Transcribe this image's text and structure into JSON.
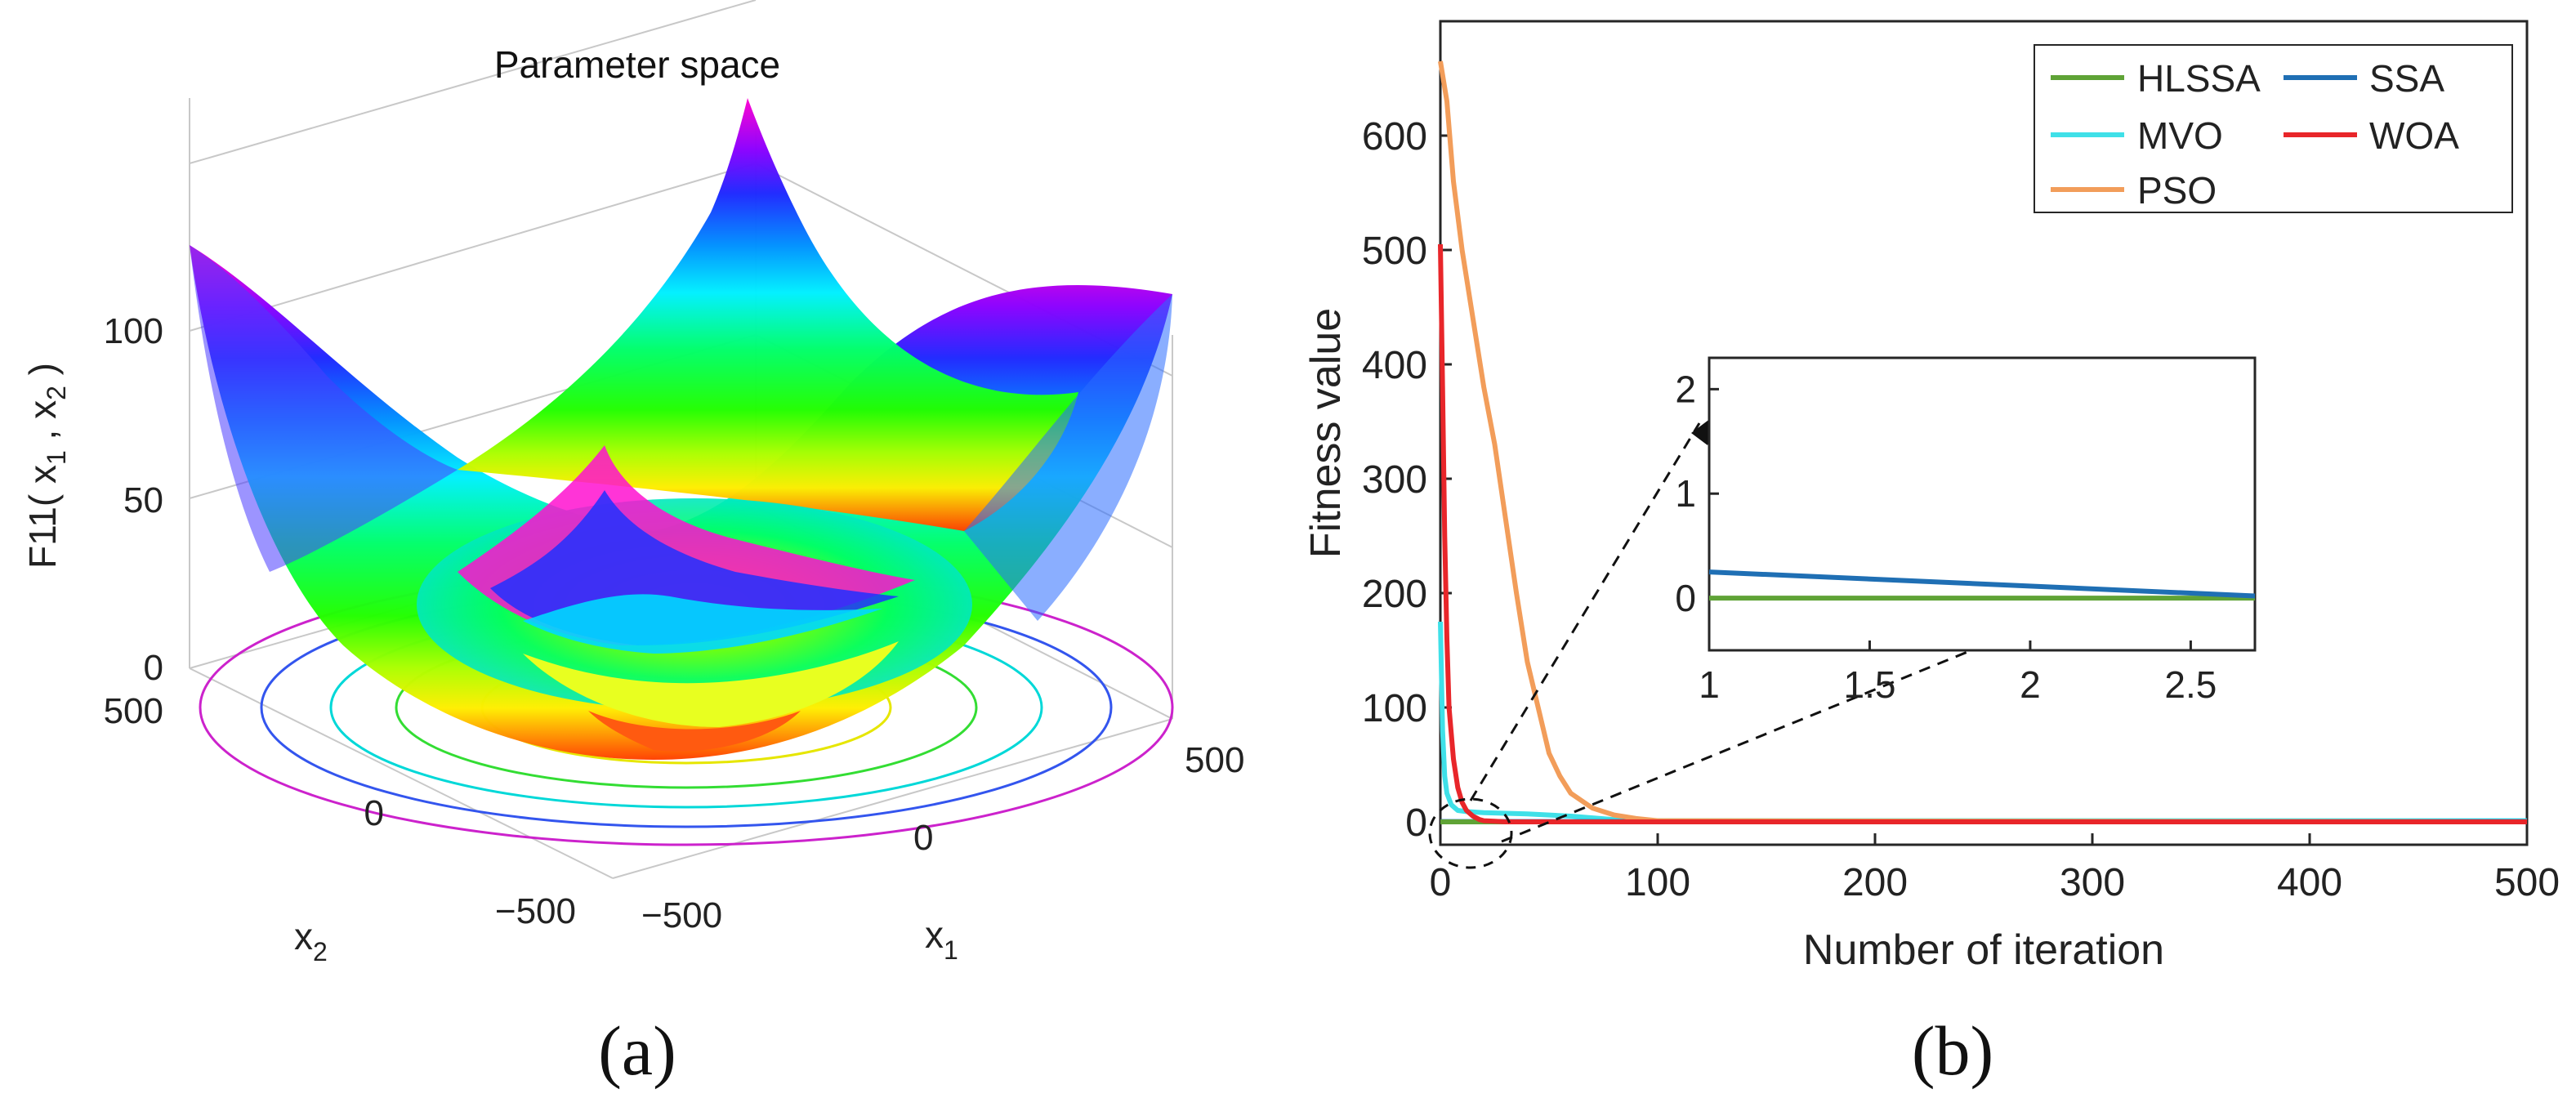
{
  "panel_a": {
    "caption": "(a)",
    "title": "Parameter space",
    "zlabel_main": "F11( x",
    "zlabel_sub1": "1",
    "zlabel_mid": " , x",
    "zlabel_sub2": "2",
    "zlabel_end": " )",
    "xlabel_main": "x",
    "xlabel_sub": "1",
    "ylabel_main": "x",
    "ylabel_sub": "2",
    "z_ticks": [
      "0",
      "50",
      "100"
    ],
    "x1_ticks": [
      "−500",
      "0",
      "500"
    ],
    "x2_ticks": [
      "500",
      "0",
      "−500"
    ]
  },
  "panel_b": {
    "caption": "(b)",
    "chart_data": {
      "type": "line",
      "xlabel": "Number of iteration",
      "ylabel": "Fitness value",
      "xlim": [
        0,
        500
      ],
      "ylim": [
        -20,
        700
      ],
      "x_ticks": [
        0,
        100,
        200,
        300,
        400,
        500
      ],
      "y_ticks": [
        0,
        100,
        200,
        300,
        400,
        500,
        600
      ],
      "legend_position": "top-right",
      "series": [
        {
          "name": "HLSSA",
          "color": "#5fa336",
          "x": [
            0,
            500
          ],
          "y": [
            0,
            0
          ]
        },
        {
          "name": "SSA",
          "color": "#1f6fb4",
          "x": [
            0,
            500
          ],
          "y": [
            0.25,
            0.25
          ]
        },
        {
          "name": "MVO",
          "color": "#3fe0e8",
          "x": [
            0,
            1,
            2,
            3,
            5,
            8,
            12,
            20,
            40,
            60,
            80,
            100,
            500
          ],
          "y": [
            175,
            80,
            40,
            25,
            15,
            10,
            9,
            8,
            7,
            5,
            2,
            1,
            1
          ]
        },
        {
          "name": "WOA",
          "color": "#e8262a",
          "x": [
            0,
            1,
            2,
            3,
            4,
            6,
            8,
            10,
            12,
            15,
            18,
            20,
            25,
            30,
            500
          ],
          "y": [
            505,
            380,
            250,
            160,
            100,
            55,
            30,
            17,
            10,
            5,
            2,
            1,
            0.5,
            0,
            0
          ]
        },
        {
          "name": "PSO",
          "color": "#f29d5a",
          "x": [
            0,
            3,
            6,
            10,
            15,
            20,
            25,
            30,
            35,
            40,
            45,
            50,
            55,
            60,
            70,
            80,
            90,
            100,
            500
          ],
          "y": [
            665,
            630,
            560,
            500,
            440,
            380,
            330,
            265,
            200,
            140,
            100,
            60,
            40,
            25,
            12,
            6,
            3,
            1,
            0
          ]
        }
      ],
      "inset": {
        "xlim": [
          1,
          2.7
        ],
        "ylim": [
          -0.5,
          2.3
        ],
        "x_ticks": [
          1,
          1.5,
          2,
          2.5
        ],
        "y_ticks": [
          0,
          1,
          2
        ],
        "series": [
          {
            "name": "HLSSA",
            "color": "#5fa336",
            "x": [
              1,
              2.7
            ],
            "y": [
              0,
              0
            ]
          },
          {
            "name": "SSA",
            "color": "#1f6fb4",
            "x": [
              1,
              2.7
            ],
            "y": [
              0.25,
              0.02
            ]
          }
        ]
      }
    }
  }
}
